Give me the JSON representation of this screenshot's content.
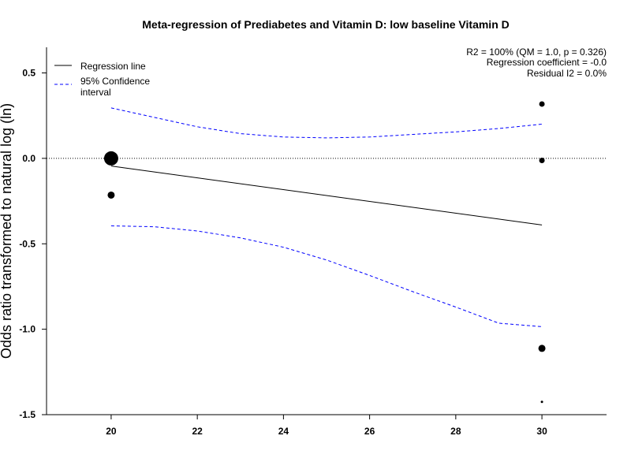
{
  "chart_data": {
    "type": "scatter",
    "title": "Meta-regression of  Prediabetes and Vitamin D: low baseline Vitamin D",
    "xlabel": "",
    "ylabel": "Odds ratio transformed to natural log (ln)",
    "xlim": [
      18.5,
      31.5
    ],
    "ylim": [
      -1.5,
      0.65
    ],
    "xticks": [
      20,
      22,
      24,
      26,
      28,
      30
    ],
    "yticks": [
      0.5,
      0.0,
      -0.5,
      -1.0,
      -1.5
    ],
    "ytick_labels": [
      "0.5",
      "0.0",
      "-0.5",
      "-1.0",
      "-1.5"
    ],
    "grid": false,
    "reference_line": {
      "y": 0,
      "style": "dotted"
    },
    "points": [
      {
        "x": 20,
        "y": 0.0,
        "weight": "large"
      },
      {
        "x": 20,
        "y": -0.215,
        "weight": "medium"
      },
      {
        "x": 30,
        "y": 0.318,
        "weight": "small"
      },
      {
        "x": 30,
        "y": -0.012,
        "weight": "small"
      },
      {
        "x": 30,
        "y": -1.112,
        "weight": "medium"
      },
      {
        "x": 30,
        "y": -1.425,
        "weight": "tiny"
      }
    ],
    "series": [
      {
        "name": "Regression line",
        "style": "solid",
        "color": "#000000",
        "x": [
          20,
          30
        ],
        "y": [
          -0.045,
          -0.39
        ]
      },
      {
        "name": "95% Confidence interval",
        "style": "dashed",
        "color": "#0000ff",
        "upper": {
          "x": [
            20,
            21,
            22,
            23,
            24,
            25,
            26,
            27,
            28,
            29,
            30
          ],
          "y": [
            0.295,
            0.24,
            0.185,
            0.145,
            0.125,
            0.12,
            0.125,
            0.14,
            0.155,
            0.175,
            0.2
          ]
        },
        "lower": {
          "x": [
            20,
            21,
            22,
            23,
            24,
            25,
            26,
            27,
            28,
            29,
            30
          ],
          "y": [
            -0.395,
            -0.4,
            -0.425,
            -0.465,
            -0.52,
            -0.595,
            -0.685,
            -0.78,
            -0.87,
            -0.965,
            -0.985
          ]
        }
      }
    ],
    "legend": {
      "placement": "top-left",
      "entries": [
        {
          "label_lines": [
            "Regression line"
          ]
        },
        {
          "label_lines": [
            "95% Confidence",
            "interval"
          ]
        }
      ]
    },
    "annotations": [
      "R2 = 100% (QM = 1.0, p = 0.326)",
      "Regression coefficient = -0.0",
      "Residual I2 = 0.0%"
    ],
    "annotation_placement": "top-right"
  }
}
